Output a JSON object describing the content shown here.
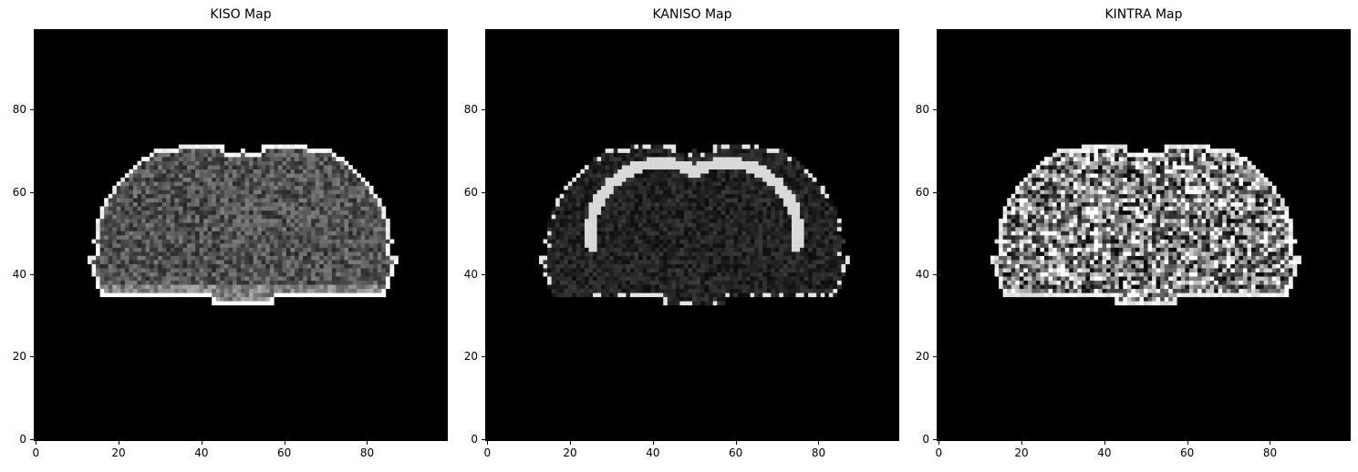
{
  "panels": [
    {
      "title": "KISO Map",
      "style": "kiso"
    },
    {
      "title": "KANISO Map",
      "style": "kaniso"
    },
    {
      "title": "KINTRA Map",
      "style": "kintra"
    }
  ],
  "axis": {
    "x_ticks": [
      "0",
      "20",
      "40",
      "60",
      "80"
    ],
    "y_ticks": [
      "0",
      "20",
      "40",
      "60",
      "80"
    ],
    "range": [
      0,
      99
    ]
  }
}
